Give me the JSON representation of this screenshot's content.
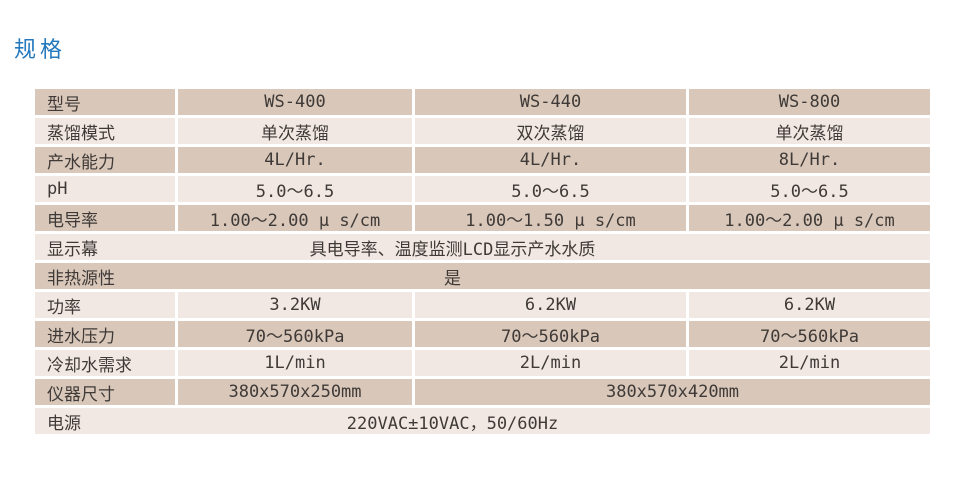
{
  "page": {
    "title": "规格",
    "title_color": "#2478bd"
  },
  "colors": {
    "row_beige": "#d9c8ba",
    "row_light": "#f1e8e3",
    "divider": "#ffffff",
    "text": "#3f3a37"
  },
  "table": {
    "rows": [
      {
        "label": "型号",
        "type": "three",
        "values": [
          "WS-400",
          "WS-440",
          "WS-800"
        ]
      },
      {
        "label": "蒸馏模式",
        "type": "three",
        "values": [
          "单次蒸馏",
          "双次蒸馏",
          "单次蒸馏"
        ]
      },
      {
        "label": "产水能力",
        "type": "three",
        "values": [
          "4L/Hr.",
          "4L/Hr.",
          "8L/Hr."
        ]
      },
      {
        "label": "pH",
        "type": "three",
        "values": [
          "5.0～6.5",
          "5.0～6.5",
          "5.0～6.5"
        ]
      },
      {
        "label": "电导率",
        "type": "three",
        "values": [
          "1.00～2.00 μ s/cm",
          "1.00～1.50 μ s/cm",
          "1.00～2.00 μ s/cm"
        ]
      },
      {
        "label": "显示幕",
        "type": "span",
        "value": "具电导率、温度监测LCD显示产水水质"
      },
      {
        "label": "非热源性",
        "type": "span",
        "value": "是"
      },
      {
        "label": "功率",
        "type": "three",
        "values": [
          "3.2KW",
          "6.2KW",
          "6.2KW"
        ]
      },
      {
        "label": "进水压力",
        "type": "three",
        "values": [
          "70～560kPa",
          "70～560kPa",
          "70～560kPa"
        ]
      },
      {
        "label": "冷却水需求",
        "type": "three",
        "values": [
          "1L/min",
          "2L/min",
          "2L/min"
        ]
      },
      {
        "label": "仪器尺寸",
        "type": "two",
        "values": [
          "380x570x250mm",
          "380x570x420mm"
        ]
      },
      {
        "label": "电源",
        "type": "span",
        "value": "220VAC±10VAC，50/60Hz"
      }
    ]
  }
}
